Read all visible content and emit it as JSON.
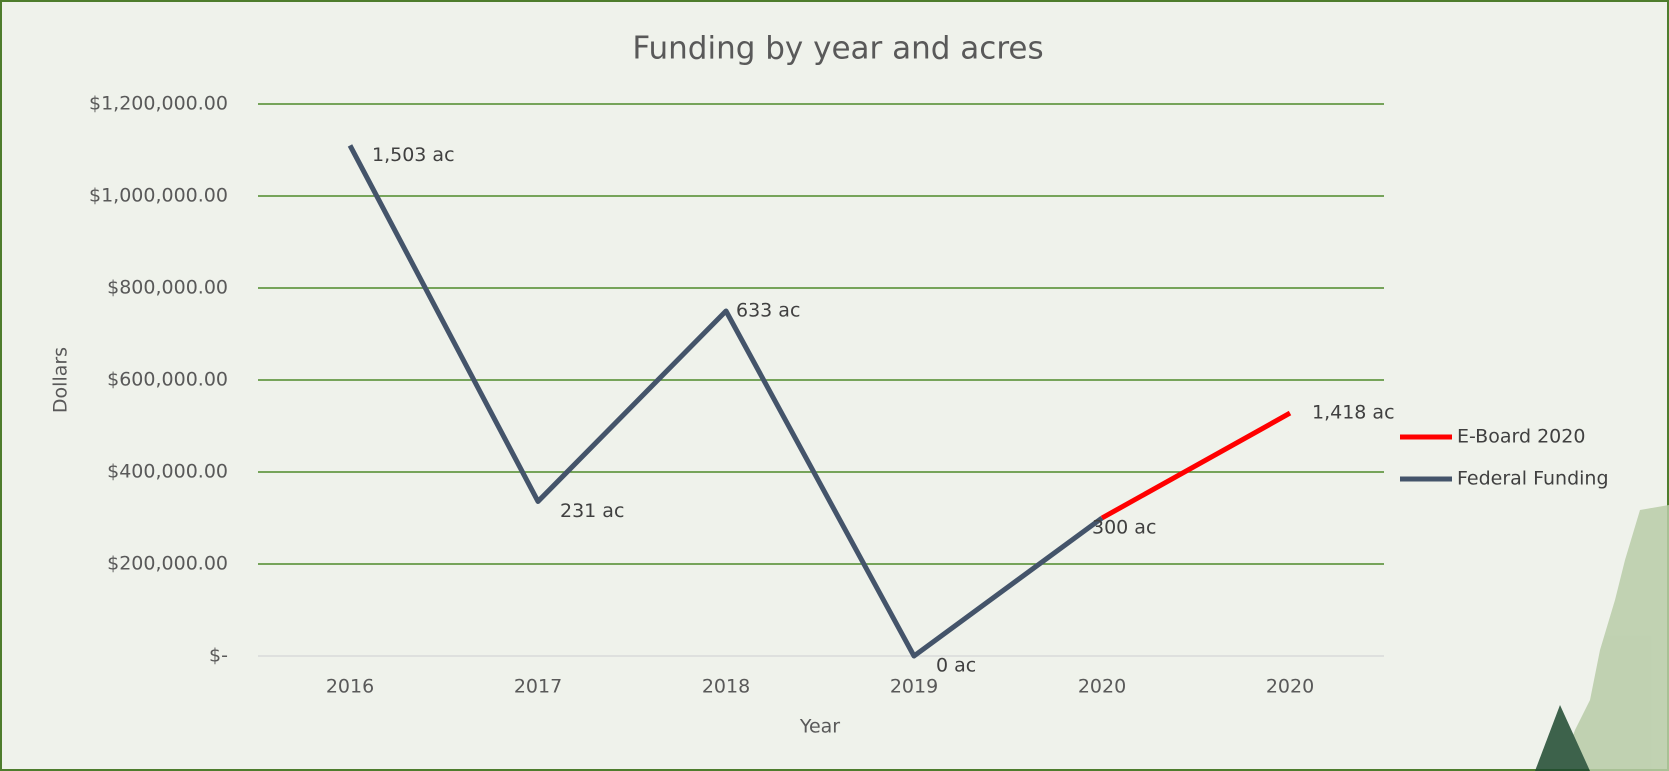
{
  "chart_data": {
    "type": "line",
    "title": "Funding by year and acres",
    "x_label": "Year",
    "y_label": "Dollars",
    "categories": [
      "2016",
      "2017",
      "2018",
      "2019",
      "2020",
      "2020"
    ],
    "series": [
      {
        "name": "E-Board 2020",
        "color": "#ff0000",
        "values": [
          null,
          null,
          null,
          null,
          300000,
          528000
        ]
      },
      {
        "name": "Federal Funding",
        "color": "#44546a",
        "values": [
          1110000,
          336000,
          750000,
          0,
          300000,
          null
        ]
      }
    ],
    "annotations": [
      "1,503 ac",
      "231 ac",
      "633 ac",
      "0 ac",
      "300 ac",
      "1,418 ac"
    ],
    "ylim": [
      0,
      1200000
    ],
    "yticks": [
      {
        "value": 0,
        "label": "$-"
      },
      {
        "value": 200000,
        "label": "$200,000.00"
      },
      {
        "value": 400000,
        "label": "$400,000.00"
      },
      {
        "value": 600000,
        "label": "$600,000.00"
      },
      {
        "value": 800000,
        "label": "$800,000.00"
      },
      {
        "value": 1000000,
        "label": "$1,000,000.00"
      },
      {
        "value": 1200000,
        "label": "$1,200,000.00"
      }
    ],
    "grid": true,
    "legend": "right"
  }
}
